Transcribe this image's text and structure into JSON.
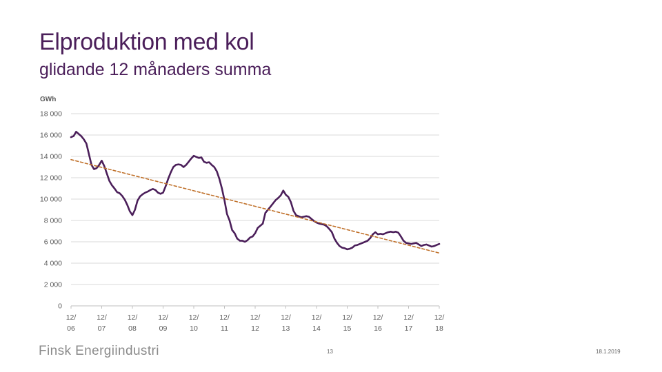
{
  "slide": {
    "title": "Elproduktion med kol",
    "subtitle": "glidande 12 månaders summa",
    "footer_logo_text": "Finsk Energiindustri",
    "page_number": "13",
    "date": "18.1.2019"
  },
  "colors": {
    "title": "#4b1f5a",
    "main_line": "#4b1f5a",
    "trend_line": "#c0712b",
    "grid": "#d9d9d9",
    "tick_text": "#595959"
  },
  "chart_data": {
    "type": "line",
    "title": "",
    "unit_label": "GWh",
    "xlabel": "",
    "ylabel": "GWh",
    "ylim": [
      0,
      18000
    ],
    "y_ticks": [
      {
        "value": 0,
        "label": "0"
      },
      {
        "value": 2000,
        "label": "2 000"
      },
      {
        "value": 4000,
        "label": "4 000"
      },
      {
        "value": 6000,
        "label": "6 000"
      },
      {
        "value": 8000,
        "label": "8 000"
      },
      {
        "value": 10000,
        "label": "10 000"
      },
      {
        "value": 12000,
        "label": "12 000"
      },
      {
        "value": 14000,
        "label": "14 000"
      },
      {
        "value": 16000,
        "label": "16 000"
      },
      {
        "value": 18000,
        "label": "18 000"
      }
    ],
    "xlim": [
      0,
      144
    ],
    "x_ticks": [
      {
        "month": 0,
        "label_top": "12/",
        "label_bottom": "06"
      },
      {
        "month": 12,
        "label_top": "12/",
        "label_bottom": "07"
      },
      {
        "month": 24,
        "label_top": "12/",
        "label_bottom": "08"
      },
      {
        "month": 36,
        "label_top": "12/",
        "label_bottom": "09"
      },
      {
        "month": 48,
        "label_top": "12/",
        "label_bottom": "10"
      },
      {
        "month": 60,
        "label_top": "12/",
        "label_bottom": "11"
      },
      {
        "month": 72,
        "label_top": "12/",
        "label_bottom": "12"
      },
      {
        "month": 84,
        "label_top": "12/",
        "label_bottom": "13"
      },
      {
        "month": 96,
        "label_top": "12/",
        "label_bottom": "14"
      },
      {
        "month": 108,
        "label_top": "12/",
        "label_bottom": "15"
      },
      {
        "month": 120,
        "label_top": "12/",
        "label_bottom": "16"
      },
      {
        "month": 132,
        "label_top": "12/",
        "label_bottom": "17"
      },
      {
        "month": 144,
        "label_top": "12/",
        "label_bottom": "18"
      }
    ],
    "grid": true,
    "series": [
      {
        "name": "Elproduktion med kol",
        "style": "solid",
        "points": [
          [
            0,
            15800
          ],
          [
            1,
            15900
          ],
          [
            2,
            16300
          ],
          [
            3,
            16100
          ],
          [
            4,
            15900
          ],
          [
            5,
            15600
          ],
          [
            6,
            15200
          ],
          [
            7,
            14200
          ],
          [
            8,
            13200
          ],
          [
            9,
            12800
          ],
          [
            10,
            12900
          ],
          [
            11,
            13200
          ],
          [
            12,
            13600
          ],
          [
            13,
            13100
          ],
          [
            14,
            12400
          ],
          [
            15,
            11700
          ],
          [
            16,
            11300
          ],
          [
            17,
            11000
          ],
          [
            18,
            10650
          ],
          [
            19,
            10550
          ],
          [
            20,
            10300
          ],
          [
            21,
            9950
          ],
          [
            22,
            9450
          ],
          [
            23,
            8850
          ],
          [
            24,
            8500
          ],
          [
            25,
            9000
          ],
          [
            26,
            9850
          ],
          [
            27,
            10250
          ],
          [
            28,
            10450
          ],
          [
            29,
            10600
          ],
          [
            30,
            10700
          ],
          [
            31,
            10850
          ],
          [
            32,
            10950
          ],
          [
            33,
            10850
          ],
          [
            34,
            10600
          ],
          [
            35,
            10500
          ],
          [
            36,
            10600
          ],
          [
            37,
            11200
          ],
          [
            38,
            11900
          ],
          [
            39,
            12500
          ],
          [
            40,
            13000
          ],
          [
            41,
            13200
          ],
          [
            42,
            13250
          ],
          [
            43,
            13200
          ],
          [
            44,
            13000
          ],
          [
            45,
            13200
          ],
          [
            46,
            13500
          ],
          [
            47,
            13800
          ],
          [
            48,
            14050
          ],
          [
            49,
            13950
          ],
          [
            50,
            13850
          ],
          [
            51,
            13900
          ],
          [
            52,
            13500
          ],
          [
            53,
            13400
          ],
          [
            54,
            13450
          ],
          [
            55,
            13200
          ],
          [
            56,
            13000
          ],
          [
            57,
            12600
          ],
          [
            58,
            11900
          ],
          [
            59,
            11000
          ],
          [
            60,
            9900
          ],
          [
            61,
            8600
          ],
          [
            62,
            8000
          ],
          [
            63,
            7100
          ],
          [
            64,
            6800
          ],
          [
            65,
            6300
          ],
          [
            66,
            6100
          ],
          [
            67,
            6100
          ],
          [
            68,
            6000
          ],
          [
            69,
            6150
          ],
          [
            70,
            6400
          ],
          [
            71,
            6500
          ],
          [
            72,
            6800
          ],
          [
            73,
            7300
          ],
          [
            74,
            7500
          ],
          [
            75,
            7700
          ],
          [
            76,
            8700
          ],
          [
            77,
            9000
          ],
          [
            78,
            9300
          ],
          [
            79,
            9600
          ],
          [
            80,
            9900
          ],
          [
            81,
            10100
          ],
          [
            82,
            10350
          ],
          [
            83,
            10800
          ],
          [
            84,
            10400
          ],
          [
            85,
            10200
          ],
          [
            86,
            9700
          ],
          [
            87,
            8900
          ],
          [
            88,
            8500
          ],
          [
            89,
            8400
          ],
          [
            90,
            8300
          ],
          [
            91,
            8350
          ],
          [
            92,
            8400
          ],
          [
            93,
            8350
          ],
          [
            94,
            8150
          ],
          [
            95,
            7950
          ],
          [
            96,
            7800
          ],
          [
            97,
            7700
          ],
          [
            98,
            7650
          ],
          [
            99,
            7600
          ],
          [
            100,
            7450
          ],
          [
            101,
            7200
          ],
          [
            102,
            6900
          ],
          [
            103,
            6300
          ],
          [
            104,
            5900
          ],
          [
            105,
            5600
          ],
          [
            106,
            5450
          ],
          [
            107,
            5400
          ],
          [
            108,
            5300
          ],
          [
            109,
            5350
          ],
          [
            110,
            5450
          ],
          [
            111,
            5650
          ],
          [
            112,
            5700
          ],
          [
            113,
            5800
          ],
          [
            114,
            5900
          ],
          [
            115,
            6000
          ],
          [
            116,
            6100
          ],
          [
            117,
            6350
          ],
          [
            118,
            6700
          ],
          [
            119,
            6900
          ],
          [
            120,
            6700
          ],
          [
            121,
            6750
          ],
          [
            122,
            6700
          ],
          [
            123,
            6800
          ],
          [
            124,
            6900
          ],
          [
            125,
            6950
          ],
          [
            126,
            6900
          ],
          [
            127,
            6950
          ],
          [
            128,
            6850
          ],
          [
            129,
            6500
          ],
          [
            130,
            6100
          ],
          [
            131,
            5900
          ],
          [
            132,
            5850
          ],
          [
            133,
            5800
          ],
          [
            134,
            5850
          ],
          [
            135,
            5900
          ],
          [
            136,
            5750
          ],
          [
            137,
            5600
          ],
          [
            138,
            5700
          ],
          [
            139,
            5750
          ],
          [
            140,
            5650
          ],
          [
            141,
            5550
          ],
          [
            142,
            5600
          ],
          [
            143,
            5700
          ],
          [
            144,
            5800
          ]
        ]
      },
      {
        "name": "Trend",
        "style": "dashed",
        "points": [
          [
            0,
            13700
          ],
          [
            144,
            4950
          ]
        ]
      }
    ]
  }
}
